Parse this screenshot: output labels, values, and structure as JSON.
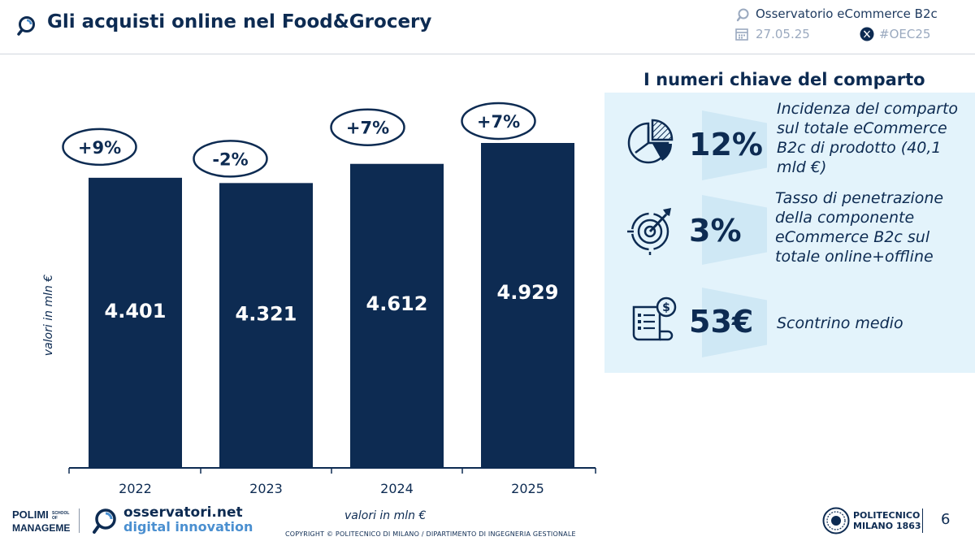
{
  "header": {
    "title": "Gli acquisti online nel Food&Grocery",
    "observatory": "Osservatorio eCommerce B2c",
    "date": "27.05.25",
    "hashtag": "#OEC25"
  },
  "chart_data": {
    "type": "bar",
    "categories": [
      "2022",
      "2023",
      "2024",
      "2025"
    ],
    "values": [
      4401,
      4321,
      4612,
      4929
    ],
    "value_labels": [
      "4.401",
      "4.321",
      "4.612",
      "4.929"
    ],
    "growth_labels": [
      "+9%",
      "-2%",
      "+7%",
      "+7%"
    ],
    "ylabel": "valori in mln €",
    "ylim": [
      0,
      4929
    ],
    "colors": {
      "bar": "#0d2b52",
      "axis": "#0d2b52"
    }
  },
  "kpis": {
    "title": "I numeri chiave del comparto",
    "items": [
      {
        "value": "12%",
        "icon": "pie-chart-icon",
        "lines": [
          "Incidenza del comparto",
          "sul totale eCommerce",
          "B2c di prodotto (40,1",
          "mld €)"
        ]
      },
      {
        "value": "3%",
        "icon": "target-arrow-icon",
        "lines": [
          "Tasso di penetrazione",
          "della componente",
          "eCommerce B2c sul",
          "totale online+offline"
        ]
      },
      {
        "value": "53€",
        "icon": "receipt-dollar-icon",
        "lines": [
          "Scontrino medio"
        ]
      }
    ]
  },
  "footer": {
    "unit_note": "valori in mln €",
    "copyright": "COPYRIGHT © POLITECNICO DI MILANO / DIPARTIMENTO DI INGEGNERIA GESTIONALE",
    "osservatori_line1": "osservatori.net",
    "osservatori_line2": "digital innovation",
    "polimi_logo_text": "POLIMI SCHOOL OF MANAGEMENT",
    "politecnico_line1": "POLITECNICO",
    "politecnico_line2": "MILANO 1863",
    "page_number": "6"
  }
}
